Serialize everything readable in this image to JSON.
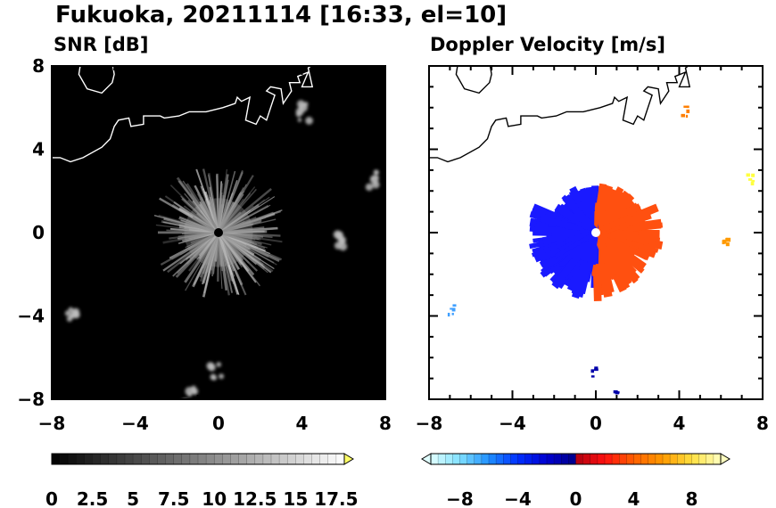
{
  "figure": {
    "title": "Fukuoka, 20211114 [16:33, el=10]"
  },
  "chart_data": [
    {
      "type": "heatmap",
      "title": "SNR [dB]",
      "background_color": "#000000",
      "xlim": [
        -8,
        8
      ],
      "ylim": [
        -8,
        8
      ],
      "x_ticks": [
        "−8",
        "−4",
        "0",
        "4",
        "8"
      ],
      "y_ticks": [
        "8",
        "4",
        "0",
        "−4",
        "−8"
      ],
      "x_tick_values": [
        -8,
        -4,
        0,
        4,
        8
      ],
      "y_tick_values": [
        8,
        4,
        0,
        -4,
        -8
      ],
      "radar_site": [
        0,
        0
      ],
      "echo_radius": 3.0,
      "clutter_patches": [
        [
          4.1,
          5.8
        ],
        [
          7.5,
          2.5
        ],
        [
          6.0,
          -0.5
        ],
        [
          -7.0,
          -3.8
        ],
        [
          -0.1,
          -6.7
        ],
        [
          -1.4,
          -7.8
        ]
      ],
      "colorbar": {
        "min": 0,
        "max": 18,
        "step": 0.5,
        "tick_values": [
          0,
          2.5,
          5,
          7.5,
          10,
          12.5,
          15,
          17.5
        ],
        "tick_labels": [
          "0",
          "2.5",
          "5",
          "7.5",
          "10",
          "12.5",
          "15",
          "17.5"
        ],
        "extend": "max",
        "extend_color": "#ffff66",
        "color_low": "#000000",
        "color_high": "#ffffff"
      }
    },
    {
      "type": "heatmap",
      "title": "Doppler Velocity [m/s]",
      "background_color": "#ffffff",
      "xlim": [
        -8,
        8
      ],
      "ylim": [
        -8,
        8
      ],
      "x_ticks": [
        "−8",
        "−4",
        "0",
        "4",
        "8"
      ],
      "y_ticks": [
        "8",
        "4",
        "0",
        "−4",
        "−8"
      ],
      "x_tick_values": [
        -8,
        -4,
        0,
        4,
        8
      ],
      "y_tick_values": [
        8,
        4,
        0,
        -4,
        -8
      ],
      "radar_site": [
        0,
        0
      ],
      "echo_radius": 3.0,
      "echo_colors": {
        "approaching": "#1a1aff",
        "receding": "#ff5010"
      },
      "scatter_patches": [
        {
          "x": 4.2,
          "y": 5.9,
          "color": "#ff7f00"
        },
        {
          "x": 7.3,
          "y": 2.6,
          "color": "#ffff40"
        },
        {
          "x": 6.1,
          "y": -0.5,
          "color": "#ff9a00"
        },
        {
          "x": -7.0,
          "y": -3.6,
          "color": "#40a0ff"
        },
        {
          "x": -0.1,
          "y": -6.6,
          "color": "#0000aa"
        },
        {
          "x": 0.8,
          "y": -7.8,
          "color": "#0000aa"
        }
      ],
      "colorbar": {
        "min": -10,
        "max": 10,
        "step": 0.5,
        "tick_values": [
          -8,
          -4,
          0,
          4,
          8
        ],
        "tick_labels": [
          "−8",
          "−4",
          "0",
          "4",
          "8"
        ],
        "extend": "both",
        "color_stops": [
          [
            -10,
            "#e0ffff"
          ],
          [
            -8,
            "#80e0ff"
          ],
          [
            -6,
            "#2090ff"
          ],
          [
            -4,
            "#0030ff"
          ],
          [
            -2,
            "#0000d0"
          ],
          [
            -0.01,
            "#000088"
          ],
          [
            0,
            "#b00010"
          ],
          [
            2,
            "#ff1010"
          ],
          [
            4,
            "#ff6000"
          ],
          [
            6,
            "#ff9a00"
          ],
          [
            8,
            "#ffe040"
          ],
          [
            10,
            "#ffffc0"
          ]
        ]
      }
    }
  ]
}
